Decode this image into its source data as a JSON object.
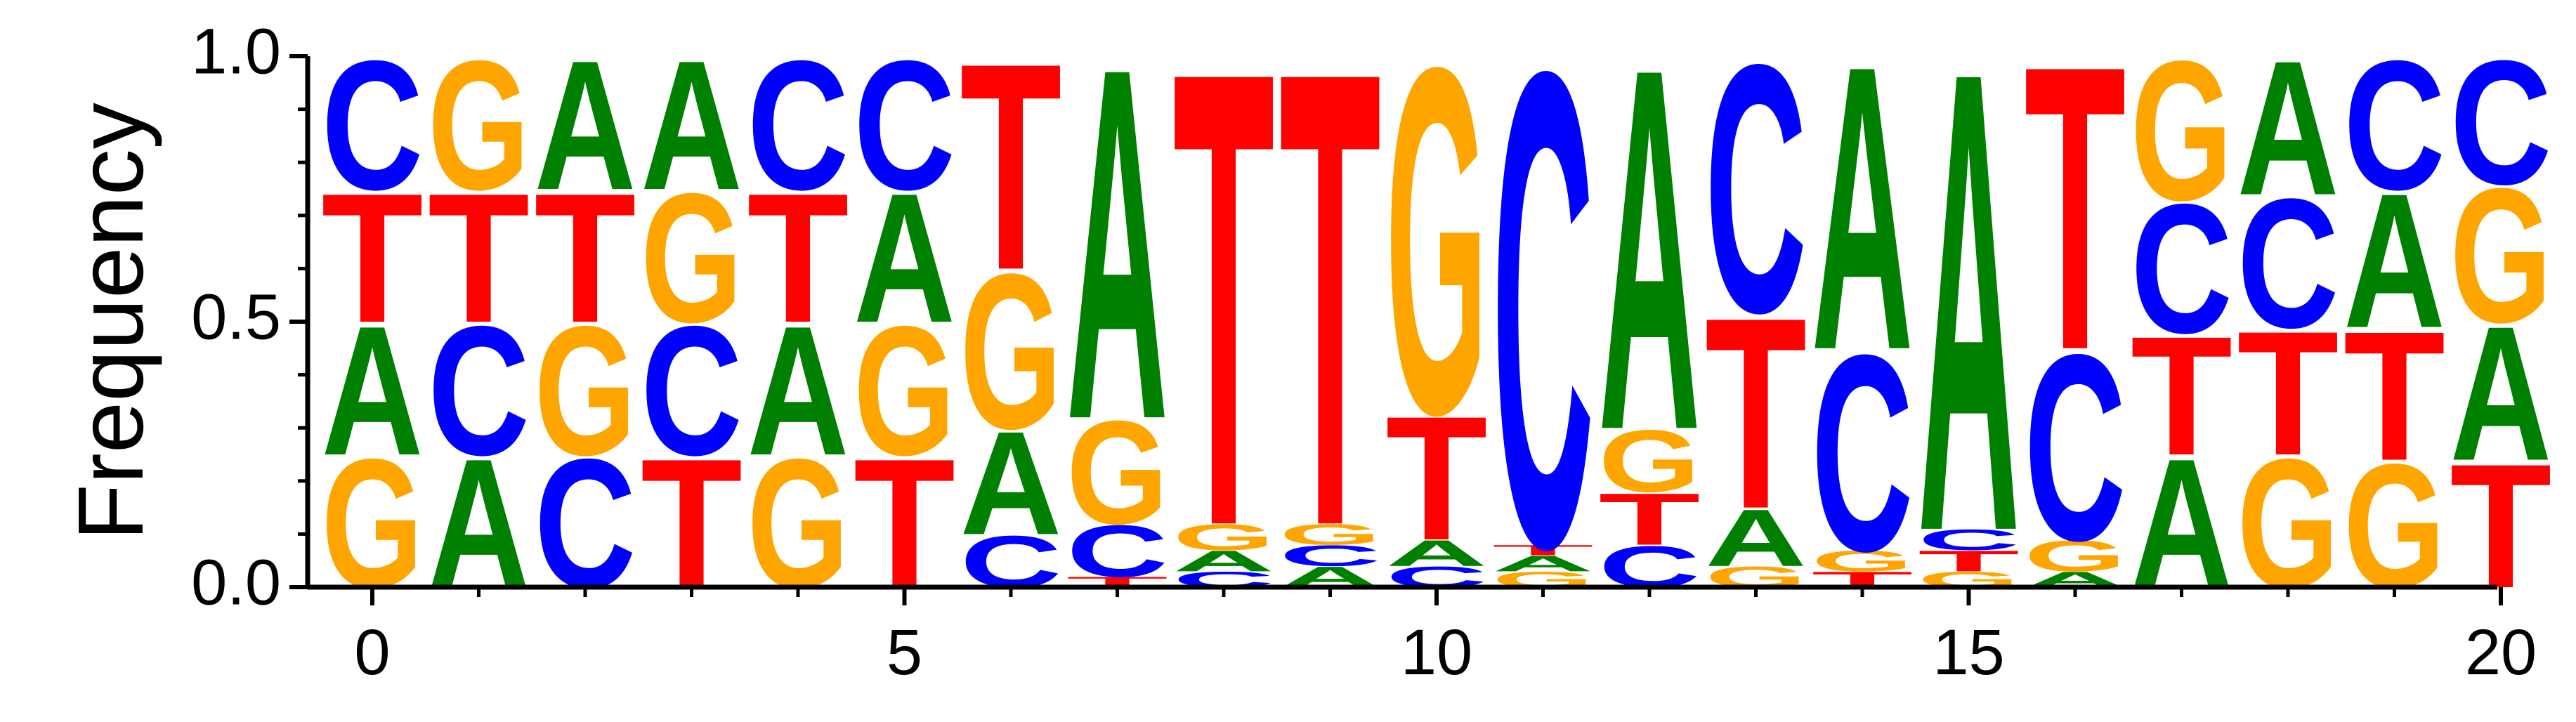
{
  "chart_data": {
    "type": "sequence-logo",
    "ylabel": "Frequency",
    "ylim": [
      0,
      1
    ],
    "yticks": [
      "0.0",
      "0.5",
      "1.0"
    ],
    "xticks": [
      "0",
      "5",
      "10",
      "15",
      "20"
    ],
    "colors": {
      "A": "#008000",
      "C": "#0000ff",
      "G": "#ffa500",
      "T": "#ff0000"
    },
    "positions": [
      {
        "pos": 0,
        "stack": [
          [
            "G",
            0.25
          ],
          [
            "A",
            0.25
          ],
          [
            "T",
            0.25
          ],
          [
            "C",
            0.25
          ]
        ]
      },
      {
        "pos": 1,
        "stack": [
          [
            "A",
            0.25
          ],
          [
            "C",
            0.25
          ],
          [
            "T",
            0.25
          ],
          [
            "G",
            0.25
          ]
        ]
      },
      {
        "pos": 2,
        "stack": [
          [
            "C",
            0.25
          ],
          [
            "G",
            0.25
          ],
          [
            "T",
            0.25
          ],
          [
            "A",
            0.25
          ]
        ]
      },
      {
        "pos": 3,
        "stack": [
          [
            "T",
            0.25
          ],
          [
            "C",
            0.25
          ],
          [
            "G",
            0.25
          ],
          [
            "A",
            0.25
          ]
        ]
      },
      {
        "pos": 4,
        "stack": [
          [
            "G",
            0.25
          ],
          [
            "A",
            0.25
          ],
          [
            "T",
            0.25
          ],
          [
            "C",
            0.25
          ]
        ]
      },
      {
        "pos": 5,
        "stack": [
          [
            "T",
            0.25
          ],
          [
            "G",
            0.25
          ],
          [
            "A",
            0.25
          ],
          [
            "C",
            0.25
          ]
        ]
      },
      {
        "pos": 6,
        "stack": [
          [
            "C",
            0.1
          ],
          [
            "A",
            0.2
          ],
          [
            "G",
            0.3
          ],
          [
            "T",
            0.4
          ]
        ]
      },
      {
        "pos": 7,
        "stack": [
          [
            "T",
            0.02
          ],
          [
            "C",
            0.1
          ],
          [
            "G",
            0.2
          ],
          [
            "A",
            0.68
          ]
        ]
      },
      {
        "pos": 8,
        "stack": [
          [
            "C",
            0.03
          ],
          [
            "A",
            0.04
          ],
          [
            "G",
            0.05
          ],
          [
            "T",
            0.88
          ]
        ]
      },
      {
        "pos": 9,
        "stack": [
          [
            "A",
            0.04
          ],
          [
            "C",
            0.04
          ],
          [
            "G",
            0.04
          ],
          [
            "T",
            0.88
          ]
        ]
      },
      {
        "pos": 10,
        "stack": [
          [
            "C",
            0.04
          ],
          [
            "A",
            0.05
          ],
          [
            "T",
            0.24
          ],
          [
            "G",
            0.67
          ]
        ]
      },
      {
        "pos": 11,
        "stack": [
          [
            "G",
            0.03
          ],
          [
            "A",
            0.03
          ],
          [
            "T",
            0.02
          ],
          [
            "C",
            0.92
          ]
        ]
      },
      {
        "pos": 12,
        "stack": [
          [
            "C",
            0.08
          ],
          [
            "T",
            0.1
          ],
          [
            "G",
            0.12
          ],
          [
            "A",
            0.7
          ]
        ]
      },
      {
        "pos": 13,
        "stack": [
          [
            "G",
            0.04
          ],
          [
            "A",
            0.11
          ],
          [
            "T",
            0.37
          ],
          [
            "C",
            0.48
          ]
        ]
      },
      {
        "pos": 14,
        "stack": [
          [
            "T",
            0.03
          ],
          [
            "G",
            0.04
          ],
          [
            "C",
            0.38
          ],
          [
            "A",
            0.55
          ]
        ]
      },
      {
        "pos": 15,
        "stack": [
          [
            "G",
            0.03
          ],
          [
            "T",
            0.04
          ],
          [
            "C",
            0.04
          ],
          [
            "A",
            0.89
          ]
        ]
      },
      {
        "pos": 16,
        "stack": [
          [
            "A",
            0.03
          ],
          [
            "G",
            0.06
          ],
          [
            "C",
            0.36
          ],
          [
            "T",
            0.55
          ]
        ]
      },
      {
        "pos": 17,
        "stack": [
          [
            "A",
            0.25
          ],
          [
            "T",
            0.23
          ],
          [
            "C",
            0.25
          ],
          [
            "G",
            0.27
          ]
        ]
      },
      {
        "pos": 18,
        "stack": [
          [
            "G",
            0.25
          ],
          [
            "T",
            0.24
          ],
          [
            "C",
            0.25
          ],
          [
            "A",
            0.26
          ]
        ]
      },
      {
        "pos": 19,
        "stack": [
          [
            "G",
            0.24
          ],
          [
            "T",
            0.25
          ],
          [
            "A",
            0.26
          ],
          [
            "C",
            0.25
          ]
        ]
      },
      {
        "pos": 20,
        "stack": [
          [
            "T",
            0.24
          ],
          [
            "A",
            0.26
          ],
          [
            "G",
            0.26
          ],
          [
            "C",
            0.24
          ]
        ]
      }
    ]
  }
}
